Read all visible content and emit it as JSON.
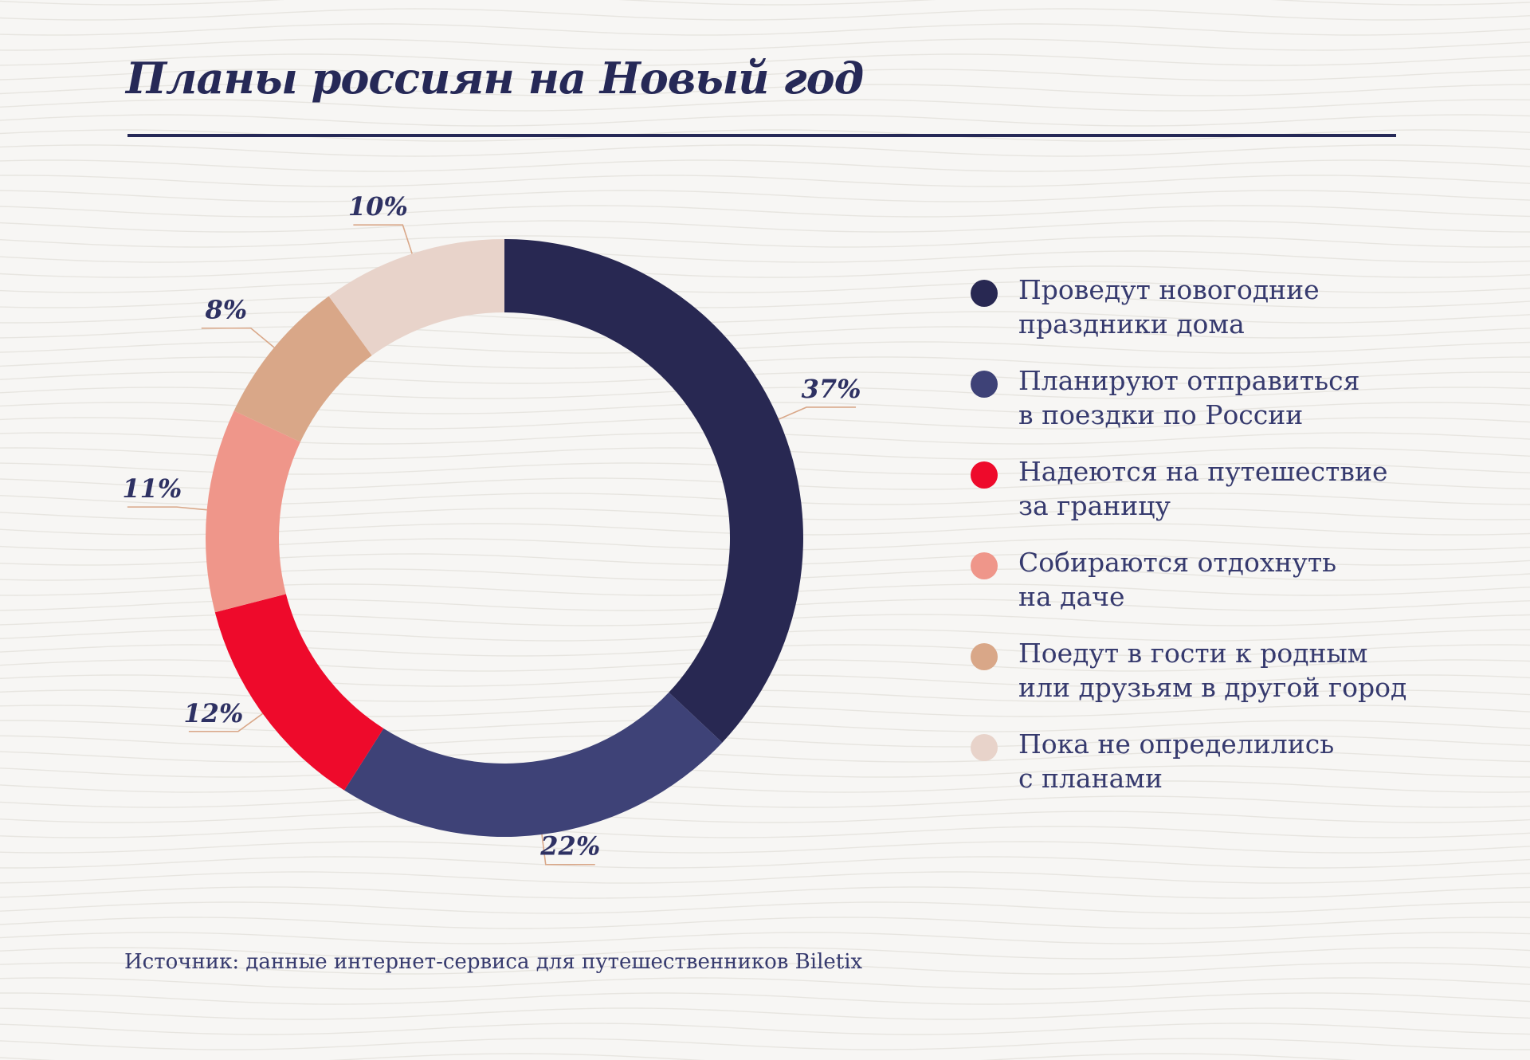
{
  "title": "Планы россиян на Новый год",
  "source": "Источник: данные интернет-сервиса для путешественников Biletix",
  "chart_data": {
    "type": "pie",
    "title": "Планы россиян на Новый год",
    "donut": true,
    "legend_position": "right",
    "unit": "%",
    "slices": [
      {
        "label": "Проведут новогодние праздники дома",
        "legend_lines": [
          "Проведут новогодние",
          "праздники дома"
        ],
        "value": 37,
        "display": "37%",
        "color": "#282852"
      },
      {
        "label": "Планируют отправиться в поездки по России",
        "legend_lines": [
          "Планируют отправиться",
          "в поездки по России"
        ],
        "value": 22,
        "display": "22%",
        "color": "#3e4277"
      },
      {
        "label": "Надеются на путешествие за границу",
        "legend_lines": [
          "Надеются на путешествие",
          "за границу"
        ],
        "value": 12,
        "display": "12%",
        "color": "#ee0a2b"
      },
      {
        "label": "Собираются отдохнуть на даче",
        "legend_lines": [
          "Собираются отдохнуть",
          "на даче"
        ],
        "value": 11,
        "display": "11%",
        "color": "#ef968a"
      },
      {
        "label": "Поедут в гости к родным или друзьям в другой город",
        "legend_lines": [
          "Поедут в гости к родным",
          "или друзьям в другой город"
        ],
        "value": 8,
        "display": "8%",
        "color": "#d9a788"
      },
      {
        "label": "Пока не определились с планами",
        "legend_lines": [
          "Пока не определились",
          "с планами"
        ],
        "value": 10,
        "display": "10%",
        "color": "#e8d3ca"
      }
    ]
  }
}
